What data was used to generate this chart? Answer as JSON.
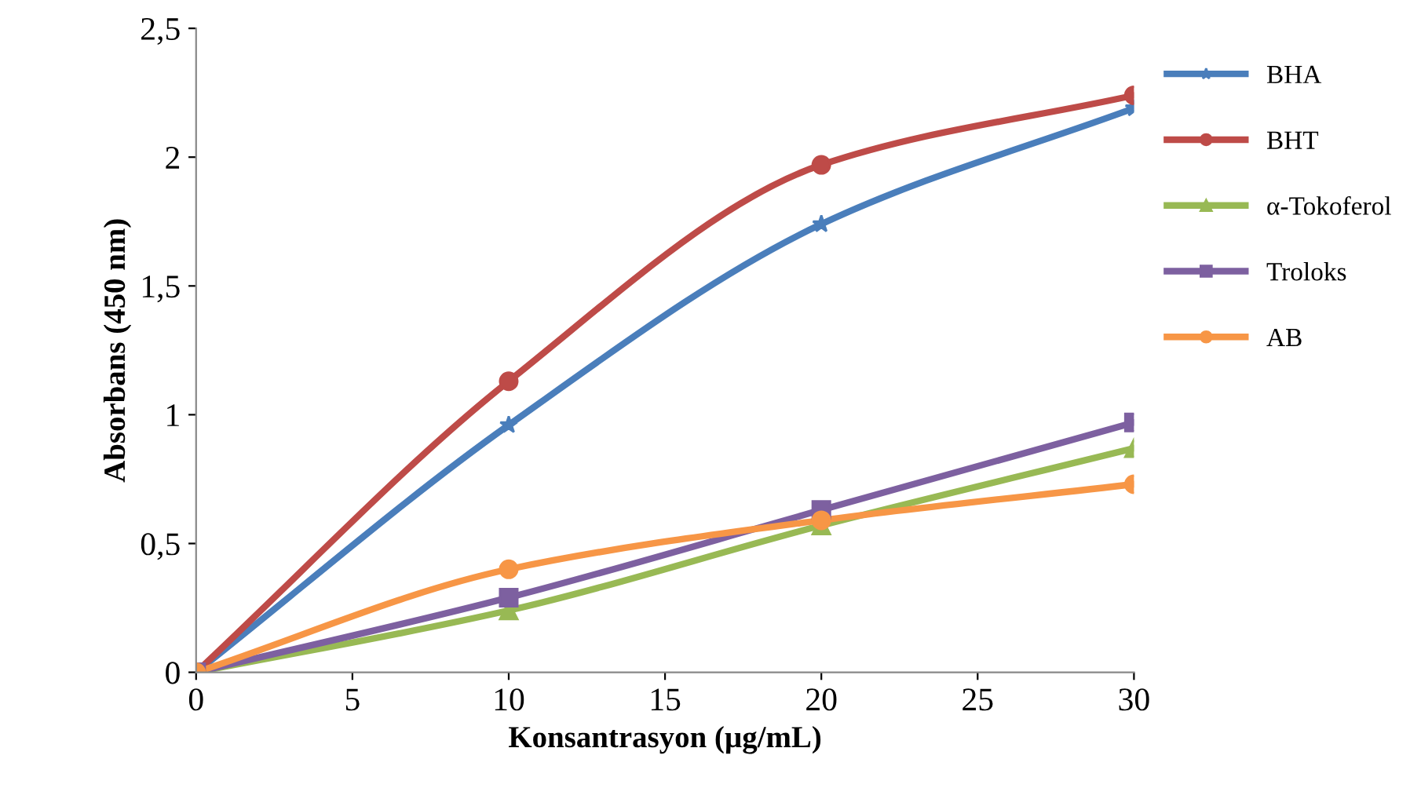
{
  "chart_data": {
    "type": "line",
    "xlabel": "Konsantrasyon (µg/mL)",
    "ylabel": "Absorbans (450 nm)",
    "x": [
      0,
      10,
      20,
      30
    ],
    "series": [
      {
        "name": "BHA",
        "color": "#4a7ebb",
        "marker": "star",
        "values": [
          0,
          0.96,
          1.74,
          2.19
        ]
      },
      {
        "name": "BHT",
        "color": "#be4b48",
        "marker": "circle",
        "values": [
          0,
          1.13,
          1.97,
          2.24
        ]
      },
      {
        "name": "α-Tokoferol",
        "color": "#98b954",
        "marker": "triangle",
        "values": [
          0,
          0.24,
          0.57,
          0.87
        ]
      },
      {
        "name": "Troloks",
        "color": "#7d60a0",
        "marker": "square",
        "values": [
          0,
          0.29,
          0.63,
          0.97
        ]
      },
      {
        "name": "AB",
        "color": "#f79646",
        "marker": "circle",
        "values": [
          0,
          0.4,
          0.59,
          0.73
        ]
      }
    ],
    "xlim": [
      0,
      30
    ],
    "xticks": [
      0,
      5,
      10,
      15,
      20,
      25,
      30
    ],
    "ylim": [
      0,
      2.5
    ],
    "yticks": [
      0,
      {
        "value": 0.5,
        "label": "0,5"
      },
      1,
      {
        "value": 1.5,
        "label": "1,5"
      },
      2,
      {
        "value": 2.5,
        "label": "2,5"
      }
    ],
    "grid": false,
    "legend": "right",
    "line_style": "solid"
  }
}
